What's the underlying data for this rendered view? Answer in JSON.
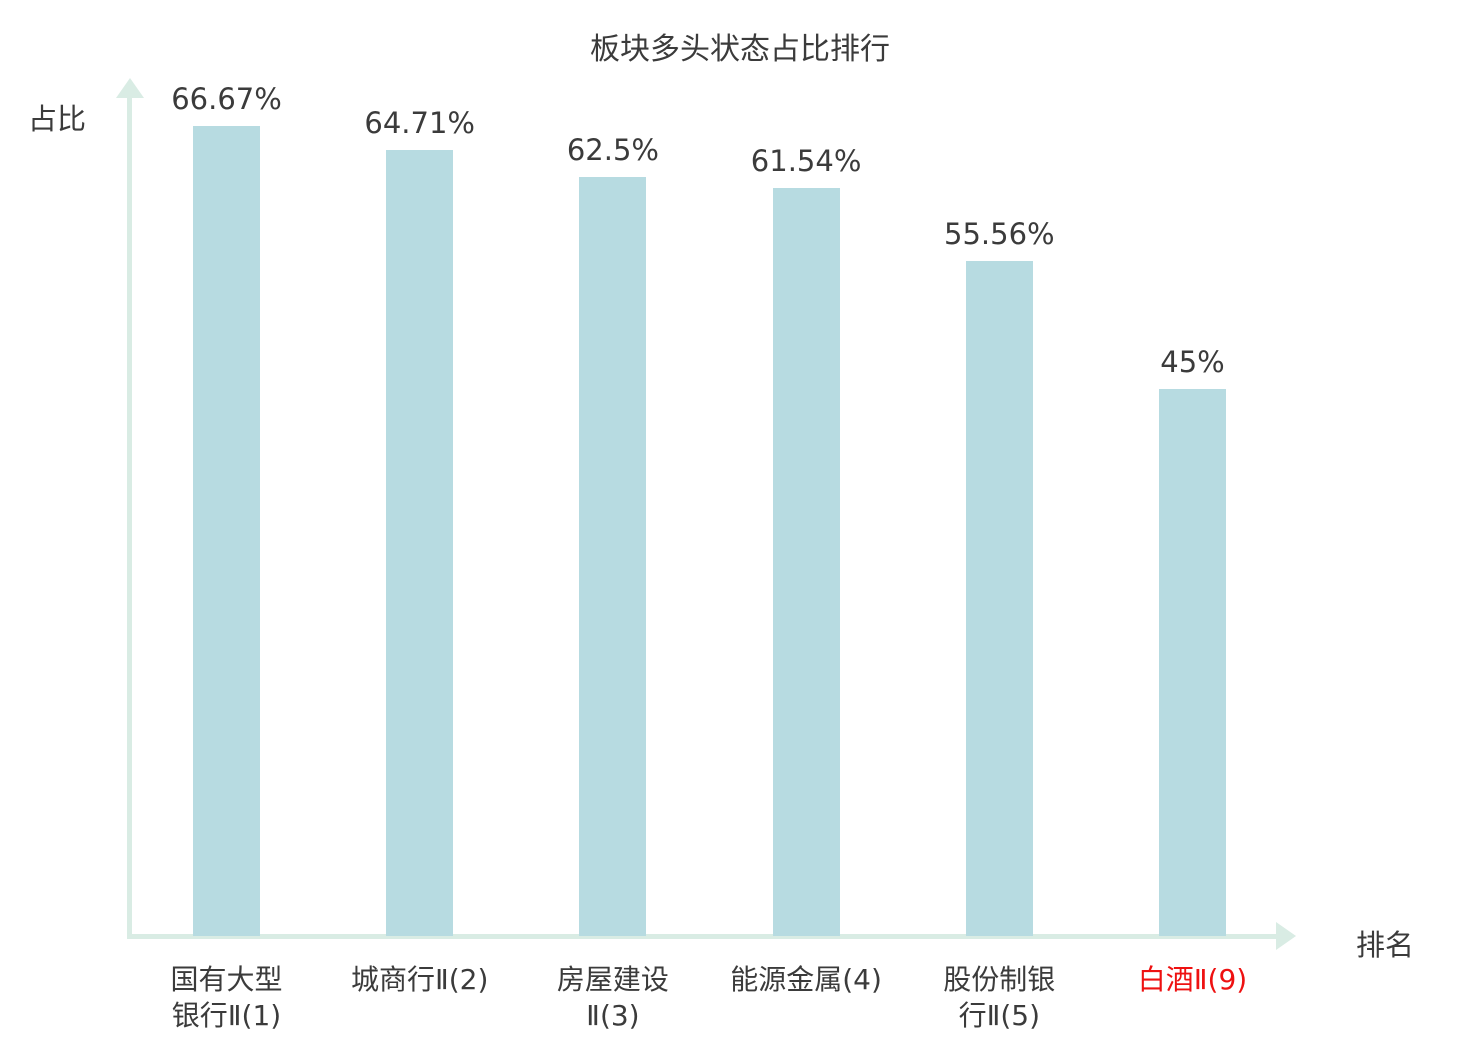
{
  "chart_data": {
    "type": "bar",
    "title": "板块多头状态占比排行",
    "ylabel": "占比",
    "xlabel": "排名",
    "categories": [
      "国有大型银行Ⅱ(1)",
      "城商行Ⅱ(2)",
      "房屋建设Ⅱ(3)",
      "能源金属(4)",
      "股份制银行Ⅱ(5)",
      "白酒Ⅱ(9)"
    ],
    "category_lines": [
      [
        "国有大型",
        "银行Ⅱ(1)"
      ],
      [
        "城商行Ⅱ(2)"
      ],
      [
        "房屋建设",
        "Ⅱ(3)"
      ],
      [
        "能源金属(4)"
      ],
      [
        "股份制银",
        "行Ⅱ(5)"
      ],
      [
        "白酒Ⅱ(9)"
      ]
    ],
    "values": [
      66.67,
      64.71,
      62.5,
      61.54,
      55.56,
      45
    ],
    "value_labels": [
      "66.67%",
      "64.71%",
      "62.5%",
      "61.54%",
      "55.56%",
      "45%"
    ],
    "highlight_index": 5,
    "ylim": [
      0,
      70
    ],
    "grid": false,
    "legend_position": "none",
    "colors": {
      "bar": "#b7dbe1",
      "axis": "#d9ece4",
      "text": "#3b3b3b",
      "highlight": "#ee1111"
    }
  }
}
